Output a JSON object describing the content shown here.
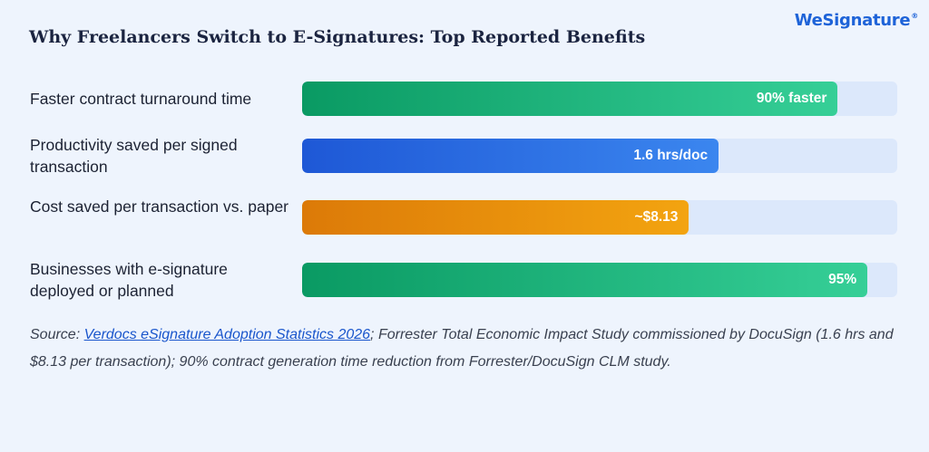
{
  "title": "Why Freelancers Switch to E-Signatures: Top Reported Benefits",
  "logo": {
    "text": "WeSignature",
    "mark": "®"
  },
  "colors": {
    "green": "#0a9a63",
    "blue": "#1e58d6",
    "orange": "#dc7a08",
    "track": "#dce8fb"
  },
  "chart_data": {
    "type": "bar",
    "orientation": "horizontal",
    "categories": [
      "Faster contract turnaround time",
      "Productivity saved per signed transaction",
      "Cost saved per transaction vs. paper",
      "Businesses with e-signature deployed or planned"
    ],
    "values": [
      90,
      70,
      65,
      95
    ],
    "value_labels": [
      "90% faster",
      "1.6 hrs/doc",
      "~$8.13",
      "95%"
    ],
    "value_scale": "percent of track length",
    "xlim": [
      0,
      100
    ],
    "grid": false,
    "legend": "none"
  },
  "source": {
    "prefix": "Source: ",
    "link_text": "Verdocs eSignature Adoption Statistics 2026",
    "suffix": "; Forrester Total Economic Impact Study commissioned by DocuSign (1.6 hrs and $8.13 per transaction); 90% contract generation time reduction from Forrester/DocuSign CLM study."
  }
}
